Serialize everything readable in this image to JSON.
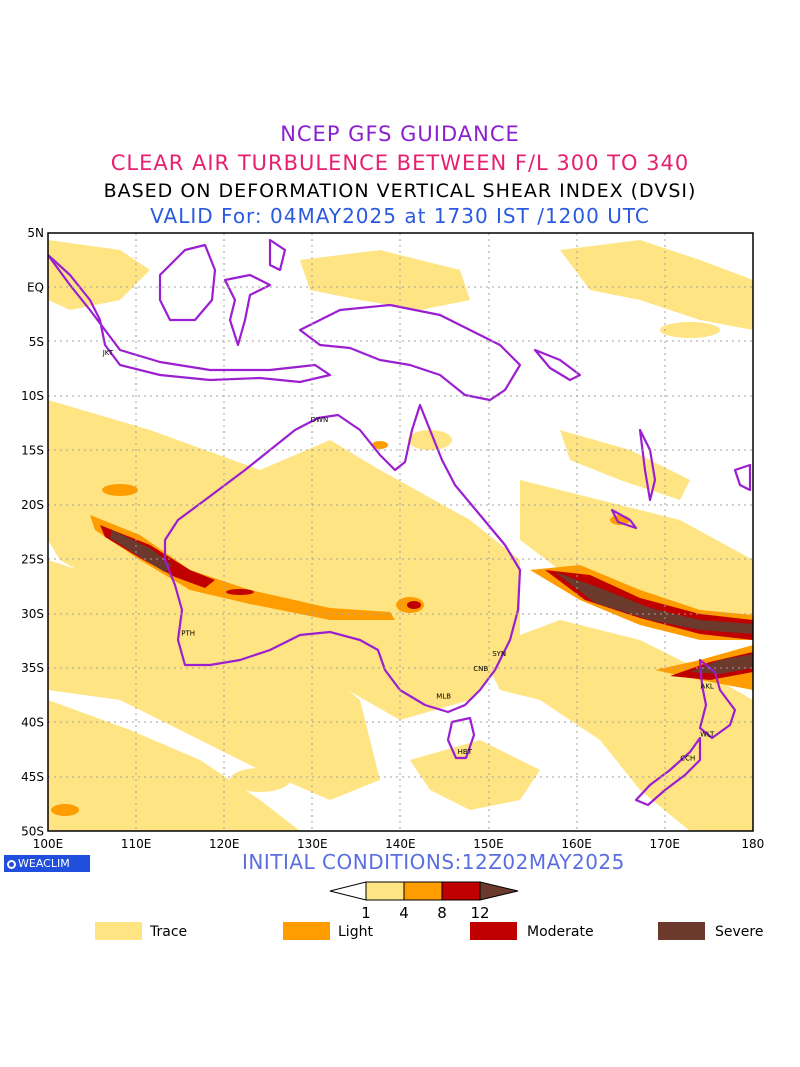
{
  "header": {
    "line1": "NCEP GFS GUIDANCE",
    "line2": "CLEAR AIR TURBULENCE BETWEEN F/L 300 TO 340",
    "line3": "BASED ON DEFORMATION VERTICAL SHEAR INDEX (DVSI)",
    "line4": "VALID For: 04MAY2025 at 1730 IST /1200 UTC"
  },
  "colors": {
    "line1": "#8a1fd0",
    "line2": "#e81f6f",
    "line3": "#000000",
    "line4": "#2a5adf",
    "coast": "#9b1fd0",
    "trace": "#ffe483",
    "light": "#ff9c00",
    "moderate": "#c00000",
    "severe": "#6b3a2d",
    "logo_bg": "#1f4fdc"
  },
  "map": {
    "lat_labels": [
      "5N",
      "EQ",
      "5S",
      "10S",
      "15S",
      "20S",
      "25S",
      "30S",
      "35S",
      "40S",
      "45S",
      "50S"
    ],
    "lon_labels": [
      "100E",
      "110E",
      "120E",
      "130E",
      "140E",
      "150E",
      "160E",
      "170E",
      "180"
    ],
    "cities": [
      {
        "code": "JKT",
        "lon": 106.8,
        "lat": -6.2
      },
      {
        "code": "DWN",
        "lon": 130.8,
        "lat": -12.4
      },
      {
        "code": "PTH",
        "lon": 115.9,
        "lat": -32.0
      },
      {
        "code": "SYN",
        "lon": 151.2,
        "lat": -33.9
      },
      {
        "code": "CNB",
        "lon": 149.1,
        "lat": -35.3
      },
      {
        "code": "MLB",
        "lon": 144.9,
        "lat": -37.8
      },
      {
        "code": "HBT",
        "lon": 147.3,
        "lat": -42.9
      },
      {
        "code": "AKL",
        "lon": 174.8,
        "lat": -36.9
      },
      {
        "code": "WLT",
        "lon": 174.8,
        "lat": -41.3
      },
      {
        "code": "CCH",
        "lon": 172.6,
        "lat": -43.5
      }
    ]
  },
  "footer": {
    "logo": "WEACLIM",
    "initial_conditions": "INITIAL CONDITIONS:12Z02MAY2025"
  },
  "legend": {
    "bar_ticks": [
      "1",
      "4",
      "8",
      "12"
    ],
    "items": [
      {
        "label": "Trace",
        "color": "#ffe483"
      },
      {
        "label": "Light",
        "color": "#ff9c00"
      },
      {
        "label": "Moderate",
        "color": "#c00000"
      },
      {
        "label": "Severe",
        "color": "#6b3a2d"
      }
    ]
  }
}
